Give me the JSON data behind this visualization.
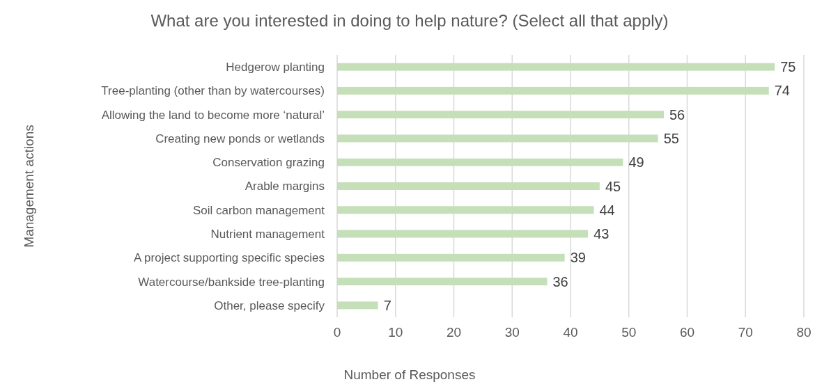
{
  "chart_data": {
    "type": "bar",
    "orientation": "horizontal",
    "title": "What are you interested in doing to help nature? (Select all that apply)",
    "xlabel": "Number of Responses",
    "ylabel": "Management actions",
    "categories": [
      "Hedgerow planting",
      "Tree-planting (other than by watercourses)",
      "Allowing the land to become more ‘natural’",
      "Creating new ponds or wetlands",
      "Conservation grazing",
      "Arable margins",
      "Soil carbon management",
      "Nutrient management",
      "A project supporting specific species",
      "Watercourse/bankside tree-planting",
      "Other, please specify"
    ],
    "values": [
      75,
      74,
      56,
      55,
      49,
      45,
      44,
      43,
      39,
      36,
      7
    ],
    "color": "#c5dfb8",
    "xlim": [
      0,
      80
    ],
    "xticks": [
      0,
      10,
      20,
      30,
      40,
      50,
      60,
      70,
      80
    ],
    "grid": "x",
    "data_labels": true
  }
}
